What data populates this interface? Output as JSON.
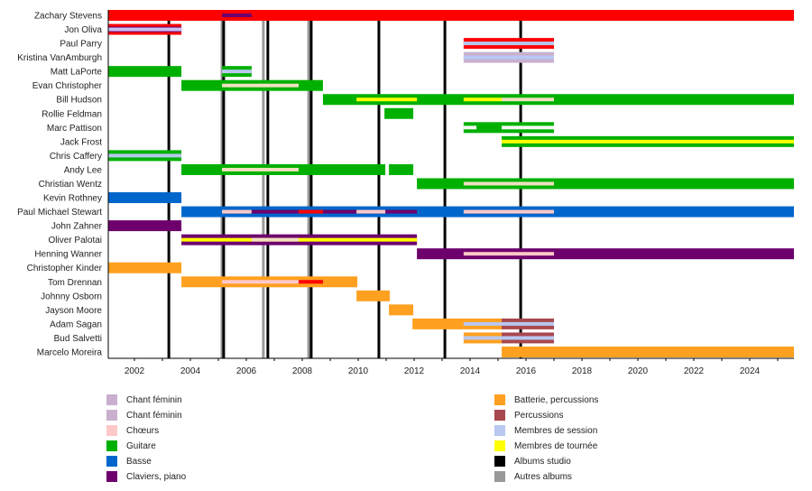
{
  "chart_data": {
    "type": "timeline",
    "title": "",
    "xlabel": "",
    "ylabel": "",
    "xlim": [
      2001.06,
      2025.58
    ],
    "x_ticks": [
      2002,
      2004,
      2006,
      2008,
      2010,
      2012,
      2014,
      2016,
      2018,
      2020,
      2022,
      2024
    ],
    "minor_tick_step": 1,
    "colors": {
      "chant": "#ff0000",
      "chant_feminin": "#c9b0cf",
      "choeurs": "#ffc8c8",
      "choeurs_beige": "#f0e0c0",
      "guitare": "#00b000",
      "basse": "#0066cc",
      "claviers": "#6e006e",
      "batterie": "#ffa020",
      "percussions": "#a8484f",
      "session": "#b8c8f0",
      "tournee": "#ffff00",
      "studio": "#000000",
      "autres": "#999999"
    },
    "members": [
      {
        "name": "Zachary Stevens",
        "bars": [
          {
            "start": 2001.06,
            "end": 2025.58,
            "role": "chant",
            "layer": "full"
          },
          {
            "start": 2005.13,
            "end": 2006.19,
            "role": "claviers",
            "layer": "stripe"
          }
        ]
      },
      {
        "name": "Jon Oliva",
        "bars": [
          {
            "start": 2001.06,
            "end": 2003.68,
            "role": "chant",
            "layer": "full"
          },
          {
            "start": 2001.06,
            "end": 2003.68,
            "role": "claviers",
            "layer": "mid"
          },
          {
            "start": 2001.06,
            "end": 2003.68,
            "role": "chant_feminin_light",
            "layer": "stripe"
          }
        ]
      },
      {
        "name": "Paul Parry",
        "bars": [
          {
            "start": 2013.77,
            "end": 2017.0,
            "role": "chant",
            "layer": "full"
          },
          {
            "start": 2013.77,
            "end": 2017.0,
            "role": "session",
            "layer": "stripe"
          }
        ]
      },
      {
        "name": "Kristina VanAmburgh",
        "bars": [
          {
            "start": 2013.77,
            "end": 2017.0,
            "role": "chant_feminin",
            "layer": "full"
          },
          {
            "start": 2013.77,
            "end": 2017.0,
            "role": "session",
            "layer": "stripe"
          }
        ]
      },
      {
        "name": "Matt LaPorte",
        "bars": [
          {
            "start": 2001.06,
            "end": 2003.68,
            "role": "guitare",
            "layer": "full"
          },
          {
            "start": 2005.13,
            "end": 2006.19,
            "role": "guitare",
            "layer": "full"
          },
          {
            "start": 2005.13,
            "end": 2006.19,
            "role": "session",
            "layer": "stripe"
          }
        ]
      },
      {
        "name": "Evan Christopher",
        "bars": [
          {
            "start": 2003.68,
            "end": 2008.74,
            "role": "guitare",
            "layer": "full"
          },
          {
            "start": 2005.13,
            "end": 2007.87,
            "role": "choeurs_beige",
            "layer": "stripe"
          }
        ]
      },
      {
        "name": "Bill Hudson",
        "bars": [
          {
            "start": 2008.74,
            "end": 2025.58,
            "role": "guitare",
            "layer": "full"
          },
          {
            "start": 2009.94,
            "end": 2012.1,
            "role": "tournee",
            "layer": "stripe"
          },
          {
            "start": 2013.77,
            "end": 2015.13,
            "role": "tournee",
            "layer": "stripe"
          },
          {
            "start": 2015.13,
            "end": 2017.0,
            "role": "choeurs_beige",
            "layer": "stripe"
          }
        ]
      },
      {
        "name": "Rollie Feldman",
        "bars": [
          {
            "start": 2010.94,
            "end": 2011.97,
            "role": "guitare",
            "layer": "full"
          }
        ]
      },
      {
        "name": "Marc Pattison",
        "bars": [
          {
            "start": 2013.77,
            "end": 2017.0,
            "role": "guitare",
            "layer": "full"
          },
          {
            "start": 2013.77,
            "end": 2014.23,
            "role": "white",
            "layer": "stripe"
          },
          {
            "start": 2015.13,
            "end": 2017.0,
            "role": "white",
            "layer": "stripe"
          }
        ]
      },
      {
        "name": "Jack Frost",
        "bars": [
          {
            "start": 2015.13,
            "end": 2025.58,
            "role": "guitare",
            "layer": "full"
          },
          {
            "start": 2015.13,
            "end": 2025.58,
            "role": "tournee",
            "layer": "stripe"
          }
        ]
      },
      {
        "name": "Chris Caffery",
        "bars": [
          {
            "start": 2001.06,
            "end": 2003.68,
            "role": "guitare",
            "layer": "full"
          },
          {
            "start": 2001.06,
            "end": 2003.68,
            "role": "session",
            "layer": "stripe"
          }
        ]
      },
      {
        "name": "Andy Lee",
        "bars": [
          {
            "start": 2003.68,
            "end": 2010.97,
            "role": "guitare",
            "layer": "full"
          },
          {
            "start": 2011.1,
            "end": 2011.97,
            "role": "guitare",
            "layer": "full"
          },
          {
            "start": 2005.13,
            "end": 2007.87,
            "role": "choeurs_beige",
            "layer": "stripe"
          }
        ]
      },
      {
        "name": "Christian Wentz",
        "bars": [
          {
            "start": 2012.1,
            "end": 2025.58,
            "role": "guitare",
            "layer": "full"
          },
          {
            "start": 2013.77,
            "end": 2017.0,
            "role": "choeurs_beige",
            "layer": "stripe"
          }
        ]
      },
      {
        "name": "Kevin Rothney",
        "bars": [
          {
            "start": 2001.06,
            "end": 2003.68,
            "role": "basse",
            "layer": "full"
          }
        ]
      },
      {
        "name": "Paul Michael Stewart",
        "bars": [
          {
            "start": 2003.68,
            "end": 2025.58,
            "role": "basse",
            "layer": "full"
          },
          {
            "start": 2005.13,
            "end": 2006.19,
            "role": "choeurs",
            "layer": "stripe"
          },
          {
            "start": 2006.19,
            "end": 2012.1,
            "role": "claviers",
            "layer": "stripe"
          },
          {
            "start": 2007.87,
            "end": 2008.74,
            "role": "chant",
            "layer": "stripe"
          },
          {
            "start": 2009.94,
            "end": 2010.97,
            "role": "choeurs",
            "layer": "stripe"
          },
          {
            "start": 2013.77,
            "end": 2017.0,
            "role": "choeurs",
            "layer": "stripe"
          }
        ]
      },
      {
        "name": "John Zahner",
        "bars": [
          {
            "start": 2001.06,
            "end": 2003.68,
            "role": "claviers",
            "layer": "full"
          }
        ]
      },
      {
        "name": "Oliver Palotai",
        "bars": [
          {
            "start": 2003.68,
            "end": 2012.1,
            "role": "claviers",
            "layer": "full"
          },
          {
            "start": 2003.68,
            "end": 2012.1,
            "role": "tournee",
            "layer": "stripe"
          },
          {
            "start": 2006.19,
            "end": 2007.87,
            "role": "choeurs_beige",
            "layer": "stripe"
          }
        ]
      },
      {
        "name": "Henning Wanner",
        "bars": [
          {
            "start": 2012.1,
            "end": 2025.58,
            "role": "claviers",
            "layer": "full"
          },
          {
            "start": 2013.77,
            "end": 2017.0,
            "role": "choeurs",
            "layer": "stripe"
          }
        ]
      },
      {
        "name": "Christopher Kinder",
        "bars": [
          {
            "start": 2001.06,
            "end": 2003.68,
            "role": "batterie",
            "layer": "full"
          }
        ]
      },
      {
        "name": "Tom Drennan",
        "bars": [
          {
            "start": 2003.68,
            "end": 2009.97,
            "role": "batterie",
            "layer": "full"
          },
          {
            "start": 2005.13,
            "end": 2007.87,
            "role": "choeurs",
            "layer": "stripe"
          },
          {
            "start": 2007.87,
            "end": 2008.74,
            "role": "chant",
            "layer": "stripe"
          }
        ]
      },
      {
        "name": "Johnny Osborn",
        "bars": [
          {
            "start": 2009.94,
            "end": 2011.13,
            "role": "batterie",
            "layer": "full"
          }
        ]
      },
      {
        "name": "Jayson Moore",
        "bars": [
          {
            "start": 2011.1,
            "end": 2011.97,
            "role": "batterie",
            "layer": "full"
          }
        ]
      },
      {
        "name": "Adam Sagan",
        "bars": [
          {
            "start": 2011.94,
            "end": 2015.13,
            "role": "batterie",
            "layer": "full"
          },
          {
            "start": 2015.13,
            "end": 2017.0,
            "role": "percussions",
            "layer": "full"
          },
          {
            "start": 2013.77,
            "end": 2017.0,
            "role": "session",
            "layer": "stripe"
          }
        ]
      },
      {
        "name": "Bud Salvetti",
        "bars": [
          {
            "start": 2013.77,
            "end": 2015.13,
            "role": "batterie",
            "layer": "full"
          },
          {
            "start": 2015.13,
            "end": 2017.0,
            "role": "percussions",
            "layer": "full"
          },
          {
            "start": 2013.77,
            "end": 2017.0,
            "role": "session",
            "layer": "stripe"
          }
        ]
      },
      {
        "name": "Marcelo Moreira",
        "bars": [
          {
            "start": 2015.13,
            "end": 2025.58,
            "role": "batterie",
            "layer": "full"
          }
        ]
      }
    ],
    "album_lines": [
      {
        "year": 2003.23,
        "type": "studio"
      },
      {
        "year": 2005.13,
        "type": "autres"
      },
      {
        "year": 2005.19,
        "type": "studio"
      },
      {
        "year": 2006.61,
        "type": "autres"
      },
      {
        "year": 2006.77,
        "type": "studio"
      },
      {
        "year": 2008.23,
        "type": "autres"
      },
      {
        "year": 2008.32,
        "type": "studio"
      },
      {
        "year": 2010.74,
        "type": "studio"
      },
      {
        "year": 2013.1,
        "type": "studio"
      },
      {
        "year": 2015.81,
        "type": "studio"
      }
    ],
    "legend_left": [
      {
        "label": "Chant féminin",
        "role": "chant_feminin"
      },
      {
        "label": "Chant féminin",
        "role": "chant_feminin"
      },
      {
        "label": "Chœurs",
        "role": "choeurs"
      },
      {
        "label": "Guitare",
        "role": "guitare"
      },
      {
        "label": "Basse",
        "role": "basse"
      },
      {
        "label": "Claviers, piano",
        "role": "claviers"
      }
    ],
    "legend_right": [
      {
        "label": "Batterie, percussions",
        "role": "batterie"
      },
      {
        "label": "Percussions",
        "role": "percussions"
      },
      {
        "label": "Membres de session",
        "role": "session"
      },
      {
        "label": "Membres de tournée",
        "role": "tournee"
      },
      {
        "label": "Albums studio",
        "role": "studio"
      },
      {
        "label": "Autres albums",
        "role": "autres"
      }
    ]
  }
}
